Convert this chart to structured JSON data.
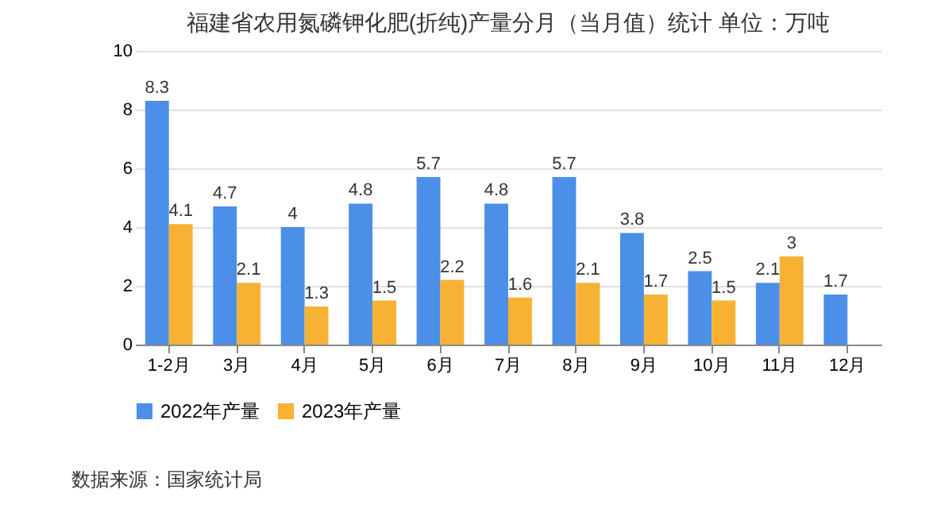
{
  "chart_data": {
    "type": "bar",
    "title": "福建省农用氮磷钾化肥(折纯)产量分月（当月值）统计  单位：万吨",
    "categories": [
      "1-2月",
      "3月",
      "4月",
      "5月",
      "6月",
      "7月",
      "8月",
      "9月",
      "10月",
      "11月",
      "12月"
    ],
    "series": [
      {
        "name": "2022年产量",
        "color": "#4b8fe8",
        "values": [
          8.3,
          4.7,
          4,
          4.8,
          5.7,
          4.8,
          5.7,
          3.8,
          2.5,
          2.1,
          1.7
        ]
      },
      {
        "name": "2023年产量",
        "color": "#f7b234",
        "values": [
          4.1,
          2.1,
          1.3,
          1.5,
          2.2,
          1.6,
          2.1,
          1.7,
          1.5,
          3,
          null
        ]
      }
    ],
    "ylim": [
      0,
      10
    ],
    "yticks": [
      0,
      2,
      4,
      6,
      8,
      10
    ],
    "grid": "y",
    "legend": "bottom",
    "data_labels": true,
    "annotations": [
      "数据来源：国家统计局"
    ]
  }
}
